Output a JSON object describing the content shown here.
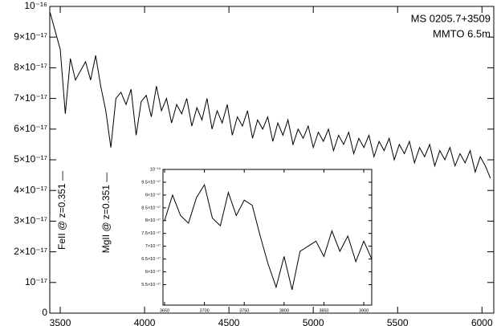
{
  "chart_data": [
    {
      "type": "line",
      "title": "MS 0205.7+3509",
      "subtitle": "MMTO 6.5m",
      "color": "#000000",
      "annotations": [
        "FeII @ z=0.351 —",
        "MgII @ z=0.351 —"
      ],
      "xlim": [
        3438,
        6070
      ],
      "xticks": [
        3500,
        4000,
        4500,
        5000,
        5500,
        6000
      ],
      "ylim": [
        0,
        1e-16
      ],
      "yticks": [
        0,
        {
          "value": 1e-17,
          "label": "10⁻¹⁷"
        },
        {
          "value": 2e-17,
          "label": "2×10⁻¹⁷"
        },
        {
          "value": 3e-17,
          "label": "3×10⁻¹⁷"
        },
        {
          "value": 4e-17,
          "label": "4×10⁻¹⁷"
        },
        {
          "value": 5e-17,
          "label": "5×10⁻¹⁷"
        },
        {
          "value": 6e-17,
          "label": "6×10⁻¹⁷"
        },
        {
          "value": 7e-17,
          "label": "7×10⁻¹⁷"
        },
        {
          "value": 8e-17,
          "label": "8×10⁻¹⁷"
        },
        {
          "value": 9e-17,
          "label": "9×10⁻¹⁷"
        },
        {
          "value": 1e-16,
          "label": "10⁻¹⁶"
        }
      ],
      "x": [
        3440,
        3470,
        3500,
        3530,
        3560,
        3590,
        3620,
        3650,
        3680,
        3710,
        3740,
        3770,
        3800,
        3830,
        3860,
        3890,
        3920,
        3950,
        3980,
        4010,
        4040,
        4070,
        4100,
        4130,
        4160,
        4190,
        4220,
        4250,
        4280,
        4310,
        4340,
        4370,
        4400,
        4430,
        4460,
        4490,
        4520,
        4550,
        4580,
        4610,
        4640,
        4670,
        4700,
        4730,
        4760,
        4790,
        4820,
        4850,
        4880,
        4910,
        4940,
        4970,
        5000,
        5030,
        5060,
        5090,
        5120,
        5150,
        5180,
        5210,
        5240,
        5270,
        5300,
        5330,
        5360,
        5390,
        5420,
        5450,
        5480,
        5510,
        5540,
        5570,
        5600,
        5630,
        5660,
        5690,
        5720,
        5750,
        5780,
        5810,
        5840,
        5870,
        5900,
        5930,
        5960,
        5990,
        6020,
        6050
      ],
      "values": [
        9.8e-17,
        9.2e-17,
        8.6e-17,
        6.5e-17,
        8.3e-17,
        7.6e-17,
        7.9e-17,
        8.2e-17,
        7.6e-17,
        8.4e-17,
        7.4e-17,
        6.6e-17,
        5.4e-17,
        7e-17,
        7.2e-17,
        6.8e-17,
        7.3e-17,
        5.8e-17,
        6.9e-17,
        7.1e-17,
        6.4e-17,
        7.4e-17,
        6.6e-17,
        7e-17,
        6.2e-17,
        6.8e-17,
        6.5e-17,
        7e-17,
        6.1e-17,
        6.7e-17,
        6.3e-17,
        7e-17,
        6e-17,
        6.6e-17,
        6.2e-17,
        6.8e-17,
        5.8e-17,
        6.4e-17,
        6.1e-17,
        6.6e-17,
        5.7e-17,
        6.3e-17,
        6e-17,
        6.4e-17,
        5.6e-17,
        6.2e-17,
        5.8e-17,
        6.3e-17,
        5.5e-17,
        6e-17,
        5.7e-17,
        6.1e-17,
        5.4e-17,
        5.9e-17,
        5.6e-17,
        6e-17,
        5.3e-17,
        5.8e-17,
        5.5e-17,
        5.9e-17,
        5.2e-17,
        5.7e-17,
        5.4e-17,
        5.8e-17,
        5.1e-17,
        5.6e-17,
        5.3e-17,
        5.7e-17,
        5e-17,
        5.5e-17,
        5.2e-17,
        5.6e-17,
        4.9e-17,
        5.4e-17,
        5.1e-17,
        5.5e-17,
        4.8e-17,
        5.3e-17,
        5e-17,
        5.4e-17,
        4.8e-17,
        5.2e-17,
        4.9e-17,
        5.3e-17,
        4.6e-17,
        5.1e-17,
        4.8e-17,
        4.4e-17
      ]
    },
    {
      "type": "line",
      "color": "#000000",
      "xlim": [
        3648,
        3910
      ],
      "xticks": [
        3650,
        3700,
        3750,
        3800,
        3850,
        3900
      ],
      "ylim": [
        4.7e-17,
        1e-16
      ],
      "yticks": [
        {
          "value": 5.5e-17,
          "label": "5.5×10⁻¹⁷"
        },
        {
          "value": 6e-17,
          "label": "6×10⁻¹⁷"
        },
        {
          "value": 6.5e-17,
          "label": "6.5×10⁻¹⁷"
        },
        {
          "value": 7e-17,
          "label": "7×10⁻¹⁷"
        },
        {
          "value": 7.5e-17,
          "label": "7.5×10⁻¹⁷"
        },
        {
          "value": 8e-17,
          "label": "8×10⁻¹⁷"
        },
        {
          "value": 8.5e-17,
          "label": "8.5×10⁻¹⁷"
        },
        {
          "value": 9e-17,
          "label": "9×10⁻¹⁷"
        },
        {
          "value": 9.5e-17,
          "label": "9.5×10⁻¹⁷"
        },
        {
          "value": 1e-16,
          "label": "10⁻¹⁶"
        }
      ],
      "x": [
        3650,
        3660,
        3670,
        3680,
        3690,
        3700,
        3710,
        3720,
        3730,
        3740,
        3750,
        3760,
        3770,
        3780,
        3790,
        3800,
        3810,
        3820,
        3830,
        3840,
        3850,
        3860,
        3870,
        3880,
        3890,
        3900,
        3910
      ],
      "values": [
        8e-17,
        9e-17,
        8.2e-17,
        7.9e-17,
        8.9e-17,
        9.4e-17,
        8.1e-17,
        7.8e-17,
        9.1e-17,
        8.2e-17,
        8.8e-17,
        8.6e-17,
        7.4e-17,
        6.3e-17,
        5.4e-17,
        6.6e-17,
        5.3e-17,
        6.8e-17,
        7e-17,
        7.2e-17,
        6.6e-17,
        7.6e-17,
        6.8e-17,
        7.4e-17,
        6.4e-17,
        7.2e-17,
        6.5e-17
      ]
    }
  ]
}
